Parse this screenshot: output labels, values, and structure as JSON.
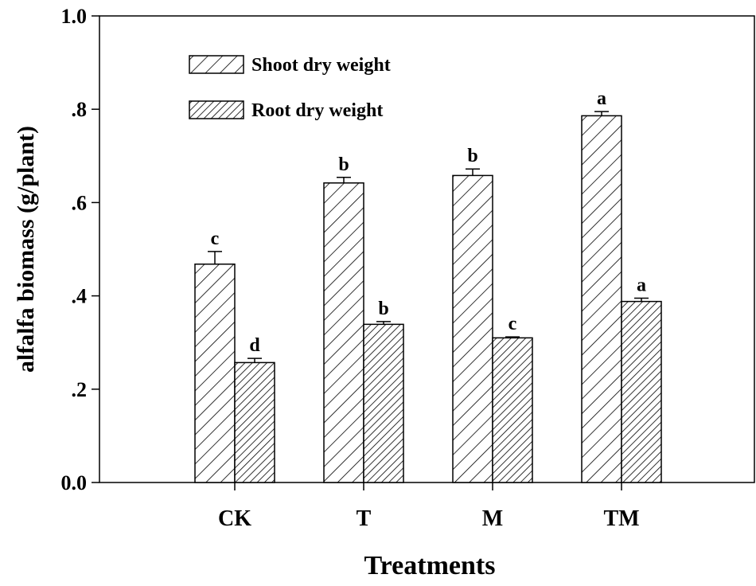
{
  "chart_data": {
    "type": "bar",
    "title": "",
    "xlabel": "Treatments",
    "ylabel": "alfalfa biomass (g/plant)",
    "ylim": [
      0,
      1.0
    ],
    "yticks": [
      0.0,
      0.2,
      0.4,
      0.6,
      0.8,
      1.0
    ],
    "ytick_labels": [
      "0.0",
      ".2",
      ".4",
      ".6",
      ".8",
      "1.0"
    ],
    "categories": [
      "CK",
      "T",
      "M",
      "TM"
    ],
    "legend_position": "top-left",
    "series": [
      {
        "name": "Shoot dry weight",
        "pattern": "sparse-hatch",
        "values": [
          0.468,
          0.642,
          0.658,
          0.786
        ],
        "errors": [
          0.027,
          0.012,
          0.014,
          0.009
        ],
        "letters": [
          "c",
          "b",
          "b",
          "a"
        ]
      },
      {
        "name": "Root dry weight",
        "pattern": "dense-hatch",
        "values": [
          0.257,
          0.339,
          0.31,
          0.388
        ],
        "errors": [
          0.009,
          0.006,
          0.002,
          0.007
        ],
        "letters": [
          "d",
          "b",
          "c",
          "a"
        ]
      }
    ]
  }
}
